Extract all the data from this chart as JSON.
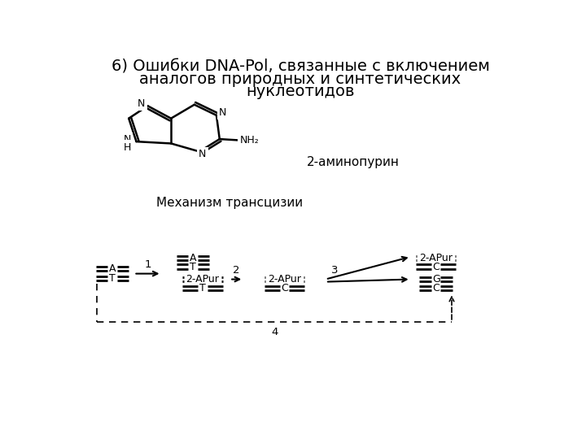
{
  "title_line1": "6) Ошибки DNA-Pol, связанные с включением",
  "title_line2": "аналогов природных и синтетических",
  "title_line3": "нуклеотидов",
  "label_2ap": "2-аминопурин",
  "label_mech": "Механизм трансцизии",
  "bg_color": "#ffffff",
  "text_color": "#000000",
  "title_fontsize": 14,
  "label_fontsize": 11,
  "fig_width": 7.2,
  "fig_height": 5.4
}
